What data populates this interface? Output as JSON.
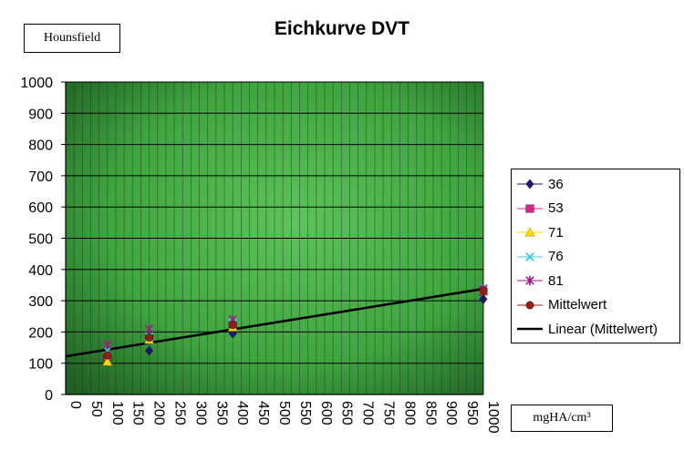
{
  "chart_data": {
    "type": "scatter",
    "title": "Eichkurve DVT",
    "ylabel": "Hounsfield",
    "xlabel": "mgHA/cm³",
    "xlim": [
      0,
      1000
    ],
    "ylim": [
      0,
      1000
    ],
    "xticks": [
      0,
      50,
      100,
      150,
      200,
      250,
      300,
      350,
      400,
      450,
      500,
      550,
      600,
      650,
      700,
      750,
      800,
      850,
      900,
      950,
      1000
    ],
    "yticks": [
      0,
      100,
      200,
      300,
      400,
      500,
      600,
      700,
      800,
      900,
      1000
    ],
    "grid": true,
    "legend_position": "right",
    "series": [
      {
        "name": "36",
        "color": "#1a1a7a",
        "marker": "diamond",
        "points": [
          [
            100,
            115
          ],
          [
            200,
            140
          ],
          [
            400,
            195
          ],
          [
            1000,
            305
          ]
        ]
      },
      {
        "name": "53",
        "color": "#e0208c",
        "marker": "square",
        "points": [
          [
            100,
            120
          ],
          [
            200,
            180
          ],
          [
            400,
            220
          ],
          [
            1000,
            330
          ]
        ]
      },
      {
        "name": "71",
        "color": "#ffd700",
        "marker": "triangle",
        "points": [
          [
            100,
            105
          ],
          [
            200,
            175
          ],
          [
            400,
            215
          ],
          [
            1000,
            335
          ]
        ]
      },
      {
        "name": "76",
        "color": "#40c8e0",
        "marker": "x",
        "points": [
          [
            100,
            140
          ],
          [
            200,
            185
          ],
          [
            400,
            230
          ],
          [
            1000,
            340
          ]
        ]
      },
      {
        "name": "81",
        "color": "#a01a8c",
        "marker": "star",
        "points": [
          [
            100,
            160
          ],
          [
            200,
            210
          ],
          [
            400,
            240
          ],
          [
            1000,
            338
          ]
        ]
      },
      {
        "name": "Mittelwert",
        "color": "#9a1a1a",
        "marker": "circle",
        "points": [
          [
            100,
            125
          ],
          [
            200,
            182
          ],
          [
            400,
            222
          ],
          [
            1000,
            333
          ]
        ]
      }
    ],
    "trendline": {
      "name": "Linear (Mittelwert)",
      "color": "#000000",
      "x": [
        0,
        1000
      ],
      "y": [
        122,
        338
      ]
    }
  }
}
